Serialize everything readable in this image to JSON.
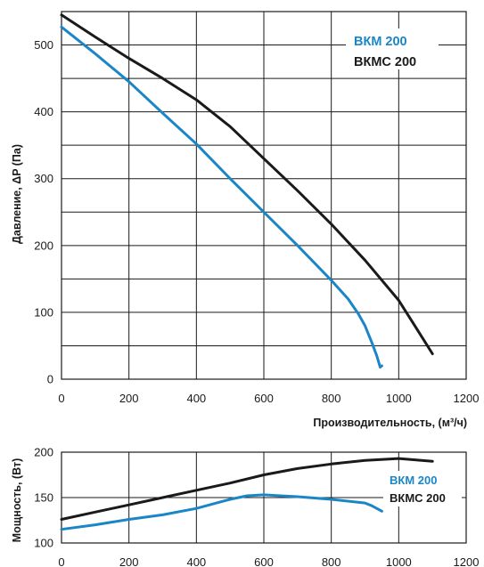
{
  "chart_data": [
    {
      "type": "line",
      "xlabel": "Производительность, (м³/ч)",
      "ylabel": "Давление, ΔP (Па)",
      "xlim": [
        0,
        1200
      ],
      "ylim": [
        0,
        550
      ],
      "xticks": [
        0,
        200,
        400,
        600,
        800,
        1000,
        1200
      ],
      "yticks": [
        0,
        100,
        200,
        300,
        400,
        500
      ],
      "grid": true,
      "legend_position": "top-right",
      "series": [
        {
          "name": "ВКМ 200",
          "color": "#1a86c8",
          "x": [
            0,
            100,
            200,
            300,
            400,
            500,
            600,
            700,
            800,
            850,
            880,
            900,
            920,
            935,
            945,
            950
          ],
          "y": [
            527,
            487,
            445,
            398,
            352,
            300,
            250,
            200,
            148,
            120,
            98,
            80,
            55,
            35,
            18,
            20
          ]
        },
        {
          "name": "ВКМС 200",
          "color": "#1a1a1a",
          "x": [
            0,
            100,
            200,
            300,
            400,
            500,
            600,
            700,
            800,
            900,
            1000,
            1050,
            1100
          ],
          "y": [
            545,
            512,
            480,
            450,
            418,
            378,
            330,
            282,
            232,
            178,
            118,
            78,
            38
          ]
        }
      ]
    },
    {
      "type": "line",
      "xlabel": "",
      "ylabel": "Мощность, (Вт)",
      "xlim": [
        0,
        1200
      ],
      "ylim": [
        100,
        200
      ],
      "xticks": [
        0,
        200,
        400,
        600,
        800,
        1000,
        1200
      ],
      "yticks": [
        100,
        150,
        200
      ],
      "grid": true,
      "legend_position": "right",
      "series": [
        {
          "name": "ВКМ 200",
          "color": "#1a86c8",
          "x": [
            0,
            100,
            200,
            300,
            400,
            500,
            550,
            600,
            650,
            700,
            800,
            900,
            920,
            950
          ],
          "y": [
            115,
            120,
            126,
            131,
            138,
            148,
            152,
            153,
            152,
            151,
            148,
            144,
            141,
            135
          ]
        },
        {
          "name": "ВКМС 200",
          "color": "#1a1a1a",
          "x": [
            0,
            100,
            200,
            300,
            400,
            500,
            600,
            700,
            800,
            900,
            1000,
            1100
          ],
          "y": [
            126,
            134,
            142,
            150,
            158,
            166,
            175,
            182,
            187,
            191,
            193,
            190
          ]
        }
      ]
    }
  ]
}
